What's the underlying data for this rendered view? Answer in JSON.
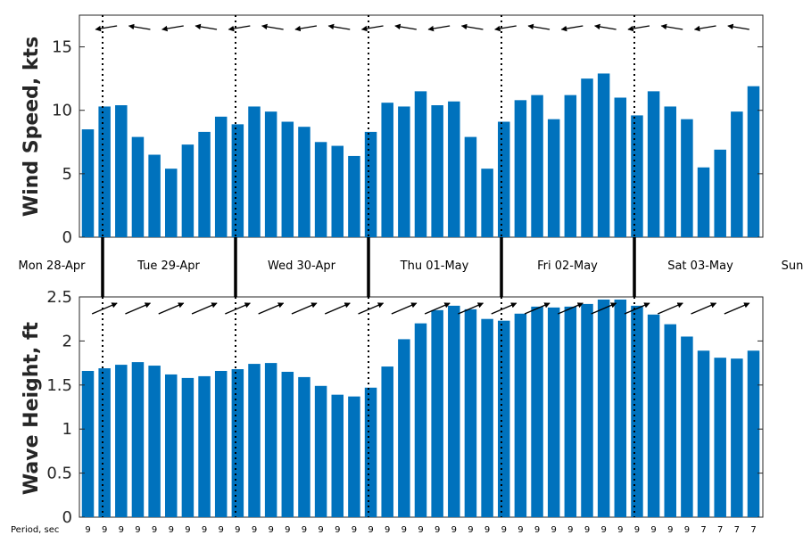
{
  "colors": {
    "bar": "#0072bd",
    "axis": "#262626",
    "arrow": "#000000",
    "divider": "#000000"
  },
  "day_labels": [
    "Mon 28-Apr",
    "Tue 29-Apr",
    "Wed 30-Apr",
    "Thu 01-May",
    "Fri 02-May",
    "Sat 03-May",
    "Sun"
  ],
  "period_label": "Period, sec",
  "chart_data": [
    {
      "type": "bar",
      "ylabel": "Wind Speed, kts",
      "ylim": [
        0,
        17.5
      ],
      "yticks": [
        0,
        5,
        10,
        15
      ],
      "values": [
        8.5,
        10.3,
        10.4,
        7.9,
        6.5,
        5.4,
        7.3,
        8.3,
        9.5,
        8.9,
        10.3,
        9.9,
        9.1,
        8.7,
        7.5,
        7.2,
        6.4,
        8.3,
        10.6,
        10.3,
        11.5,
        10.4,
        10.7,
        7.9,
        5.4,
        9.1,
        10.8,
        11.2,
        9.3,
        11.2,
        12.5,
        12.9,
        11.0,
        9.6,
        11.5,
        10.3,
        9.3,
        5.5,
        6.9,
        9.9,
        11.9
      ],
      "direction_arrows": "left-pointing",
      "grid": false
    },
    {
      "type": "bar",
      "ylabel": "Wave Height, ft",
      "ylim": [
        0,
        2.5
      ],
      "yticks": [
        "0",
        "0.5",
        "1",
        "1.5",
        "2",
        "2.5"
      ],
      "values": [
        1.66,
        1.69,
        1.73,
        1.76,
        1.72,
        1.62,
        1.58,
        1.6,
        1.66,
        1.68,
        1.74,
        1.75,
        1.65,
        1.59,
        1.49,
        1.39,
        1.37,
        1.47,
        1.71,
        2.02,
        2.2,
        2.35,
        2.4,
        2.36,
        2.25,
        2.23,
        2.31,
        2.39,
        2.38,
        2.39,
        2.42,
        2.47,
        2.47,
        2.4,
        2.3,
        2.19,
        2.05,
        1.89,
        1.81,
        1.8,
        1.89
      ],
      "periods": [
        "9",
        "9",
        "9",
        "9",
        "9",
        "9",
        "9",
        "9",
        "9",
        "9",
        "9",
        "9",
        "9",
        "9",
        "9",
        "9",
        "9",
        "9",
        "9",
        "9",
        "9",
        "9",
        "9",
        "9",
        "9",
        "9",
        "9",
        "9",
        "9",
        "9",
        "9",
        "9",
        "9",
        "9",
        "9",
        "9",
        "9",
        "7",
        "7",
        "7",
        "7"
      ],
      "direction_arrows": "up-right-pointing",
      "grid": false
    }
  ]
}
